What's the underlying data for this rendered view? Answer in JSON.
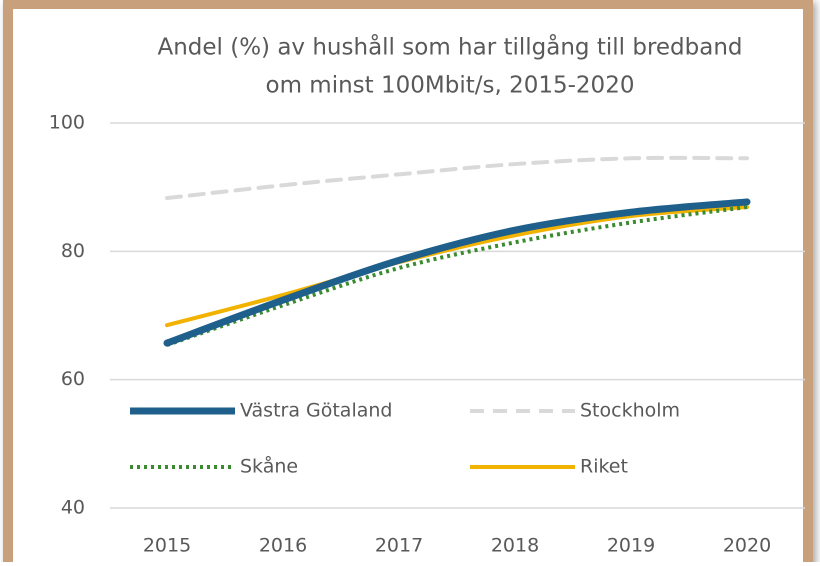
{
  "chart_data": {
    "type": "line",
    "title": [
      "Andel (%) av hushåll som har tillgång till bredband",
      "om minst 100Mbit/s, 2015-2020"
    ],
    "categories": [
      "2015",
      "2016",
      "2017",
      "2018",
      "2019",
      "2020"
    ],
    "series": [
      {
        "name": "Västra Götaland",
        "color": "#1f5f8b",
        "dash": "solid",
        "width": 7,
        "values": [
          65.7,
          72.4,
          78.6,
          83.3,
          86.1,
          87.7
        ]
      },
      {
        "name": "Stockholm",
        "color": "#d9d9d9",
        "dash": "dashed",
        "width": 4,
        "values": [
          88.3,
          90.3,
          92.0,
          93.6,
          94.5,
          94.5
        ]
      },
      {
        "name": "Skåne",
        "color": "#3a8a2f",
        "dash": "dotted",
        "width": 4,
        "values": [
          65.4,
          71.6,
          77.4,
          81.4,
          84.5,
          86.9
        ]
      },
      {
        "name": "Riket",
        "color": "#f2b200",
        "dash": "solid",
        "width": 4,
        "values": [
          68.5,
          73.2,
          78.3,
          82.5,
          85.5,
          86.9
        ]
      }
    ],
    "ylim": [
      40,
      100
    ],
    "yticks": [
      40,
      60,
      80,
      100
    ],
    "grid": true,
    "legend": "lower center"
  }
}
